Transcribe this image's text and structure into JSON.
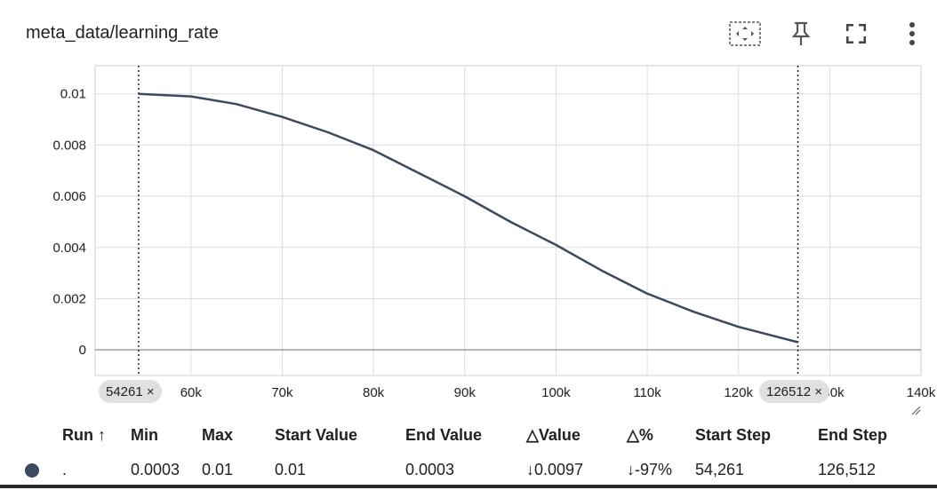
{
  "card": {
    "title": "meta_data/learning_rate"
  },
  "toolbar": {
    "icons": [
      "fit-domain-icon",
      "pin-icon",
      "fullscreen-icon",
      "more-vert-icon"
    ]
  },
  "chart_data": {
    "type": "line",
    "title": "meta_data/learning_rate",
    "xlabel": "",
    "ylabel": "",
    "xlim": [
      49500,
      140000
    ],
    "ylim": [
      -0.001,
      0.0111
    ],
    "x_ticks": [
      60000,
      70000,
      80000,
      90000,
      100000,
      110000,
      120000,
      130000,
      140000
    ],
    "x_tick_labels": [
      "60k",
      "70k",
      "80k",
      "90k",
      "100k",
      "110k",
      "120k",
      "130k",
      "140k"
    ],
    "y_ticks": [
      0,
      0.002,
      0.004,
      0.006,
      0.008,
      0.01
    ],
    "y_tick_labels": [
      "0",
      "0.002",
      "0.004",
      "0.006",
      "0.008",
      "0.01"
    ],
    "grid": true,
    "series": [
      {
        "name": ".",
        "color": "#3b4a5e",
        "x": [
          54261,
          60000,
          65000,
          70000,
          75000,
          80000,
          85000,
          90000,
          95000,
          100000,
          105000,
          110000,
          115000,
          120000,
          126512
        ],
        "y": [
          0.01,
          0.0099,
          0.0096,
          0.0091,
          0.0085,
          0.0078,
          0.0069,
          0.006,
          0.005,
          0.0041,
          0.0031,
          0.0022,
          0.0015,
          0.0009,
          0.0003
        ]
      }
    ],
    "markers": [
      54261,
      126512
    ]
  },
  "step_chips": {
    "start": "54261 ×",
    "end": "126512 ×"
  },
  "table": {
    "headers": {
      "run": "Run ↑",
      "min": "Min",
      "max": "Max",
      "start_value": "Start Value",
      "end_value": "End Value",
      "delta_value": "△Value",
      "delta_pct": "△%",
      "start_step": "Start Step",
      "end_step": "End Step"
    },
    "rows": [
      {
        "color": "#3b4a5e",
        "run": ".",
        "min": "0.0003",
        "max": "0.01",
        "start_value": "0.01",
        "end_value": "0.0003",
        "delta_value": "↓0.0097",
        "delta_pct": "↓-97%",
        "start_step": "54,261",
        "end_step": "126,512"
      }
    ]
  }
}
